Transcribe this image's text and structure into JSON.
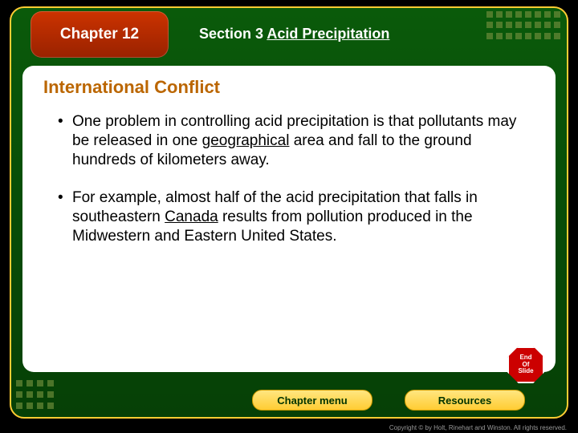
{
  "header": {
    "chapter_label": "Chapter 12",
    "section_prefix": "Section 3 ",
    "section_suffix": "Acid Precipitation"
  },
  "content": {
    "heading": "International Conflict",
    "bullets": [
      {
        "segments": [
          {
            "text": "One problem in controlling acid precipitation is that pollutants may be released in one ",
            "u": false
          },
          {
            "text": "geographical",
            "u": true
          },
          {
            "text": " area and fall to the ground hundreds of kilometers away.",
            "u": false
          }
        ]
      },
      {
        "segments": [
          {
            "text": "For example, almost half of the acid precipitation that falls in southeastern ",
            "u": false
          },
          {
            "text": "Canada",
            "u": true
          },
          {
            "text": " results from pollution produced in the Midwestern and Eastern United States.",
            "u": false
          }
        ]
      }
    ]
  },
  "nav": {
    "chapter_menu_label": "Chapter menu",
    "resources_label": "Resources",
    "end_of_slide_lines": [
      "End",
      "Of",
      "Slide"
    ]
  },
  "copyright": "Copyright © by Holt, Rinehart and Winston. All rights reserved.",
  "colors": {
    "frame_border": "#ffcc33",
    "frame_bg_top": "#0a5a0a",
    "frame_bg_bottom": "#064006",
    "chapter_box": "#cc3300",
    "heading_color": "#bb6600",
    "button_bg": "#ffcc33",
    "end_slide_bg": "#cc0000",
    "decor_square": "#6b8a3a"
  },
  "typography": {
    "chapter_fontsize": 19,
    "section_fontsize": 18,
    "heading_fontsize": 22,
    "body_fontsize": 19,
    "button_fontsize": 13,
    "copyright_fontsize": 8
  }
}
